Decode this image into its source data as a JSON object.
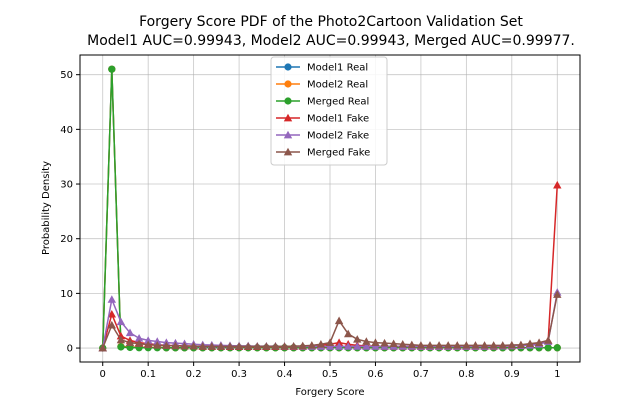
{
  "chart_data": {
    "type": "line",
    "title_line1": "Forgery Score PDF of the Photo2Cartoon Validation Set",
    "title_line2": "Model1 AUC=0.99943, Model2 AUC=0.99943, Merged AUC=0.99977.",
    "xlabel": "Forgery Score",
    "ylabel": "Probability Density",
    "xlim": [
      -0.05,
      1.05
    ],
    "ylim": [
      -2.55,
      53.6
    ],
    "xticks": [
      "0",
      "0.1",
      "0.2",
      "0.3",
      "0.4",
      "0.5",
      "0.6",
      "0.7",
      "0.8",
      "0.9",
      "1"
    ],
    "yticks": [
      "0",
      "10",
      "20",
      "30",
      "40",
      "50"
    ],
    "grid": true,
    "legend_position": "top-center",
    "x": [
      0,
      0.02,
      0.04,
      0.06,
      0.08,
      0.1,
      0.12,
      0.14,
      0.16,
      0.18,
      0.2,
      0.22,
      0.24,
      0.26,
      0.28,
      0.3,
      0.32,
      0.34,
      0.36,
      0.38,
      0.4,
      0.42,
      0.44,
      0.46,
      0.48,
      0.5,
      0.52,
      0.54,
      0.56,
      0.58,
      0.6,
      0.62,
      0.64,
      0.66,
      0.68,
      0.7,
      0.72,
      0.74,
      0.76,
      0.78,
      0.8,
      0.82,
      0.84,
      0.86,
      0.88,
      0.9,
      0.92,
      0.94,
      0.96,
      0.98,
      1.0
    ],
    "series": [
      {
        "name": "Model1 Real",
        "color": "#1f77b4",
        "marker": "circle",
        "values": [
          0,
          51,
          0.3,
          0.2,
          0.15,
          0.1,
          0.1,
          0.05,
          0.05,
          0.05,
          0.05,
          0.05,
          0.05,
          0.05,
          0.05,
          0.05,
          0.05,
          0.05,
          0.05,
          0.05,
          0.05,
          0.05,
          0.05,
          0.05,
          0.05,
          0.05,
          0.05,
          0.05,
          0.05,
          0.05,
          0.05,
          0.05,
          0.05,
          0.05,
          0.05,
          0.05,
          0.05,
          0.05,
          0.05,
          0.05,
          0.05,
          0.05,
          0.05,
          0.05,
          0.05,
          0.05,
          0.05,
          0.05,
          0.05,
          0.05,
          0.05
        ]
      },
      {
        "name": "Model2 Real",
        "color": "#ff7f0e",
        "marker": "circle",
        "values": [
          0,
          51,
          0.3,
          0.2,
          0.15,
          0.1,
          0.1,
          0.05,
          0.05,
          0.05,
          0.05,
          0.05,
          0.05,
          0.05,
          0.05,
          0.05,
          0.05,
          0.05,
          0.05,
          0.05,
          0.05,
          0.05,
          0.05,
          0.05,
          0.05,
          0.05,
          0.05,
          0.05,
          0.05,
          0.05,
          0.05,
          0.05,
          0.05,
          0.05,
          0.05,
          0.05,
          0.05,
          0.05,
          0.05,
          0.05,
          0.05,
          0.05,
          0.05,
          0.05,
          0.05,
          0.05,
          0.05,
          0.05,
          0.05,
          0.05,
          0.05
        ]
      },
      {
        "name": "Merged Real",
        "color": "#2ca02c",
        "marker": "circle",
        "values": [
          0,
          51,
          0.2,
          0.1,
          0.05,
          0.05,
          0.05,
          0.05,
          0.05,
          0.05,
          0.05,
          0.05,
          0.05,
          0.05,
          0.05,
          0.05,
          0.05,
          0.05,
          0.05,
          0.05,
          0.05,
          0.05,
          0.05,
          0.05,
          0.05,
          0.05,
          0.05,
          0.05,
          0.05,
          0.05,
          0.05,
          0.05,
          0.05,
          0.05,
          0.05,
          0.05,
          0.05,
          0.05,
          0.05,
          0.05,
          0.05,
          0.05,
          0.05,
          0.05,
          0.05,
          0.05,
          0.05,
          0.05,
          0.05,
          0.05,
          0.05
        ]
      },
      {
        "name": "Model1 Fake",
        "color": "#d62728",
        "marker": "triangle",
        "values": [
          0,
          6.2,
          2.2,
          1.4,
          1.0,
          0.8,
          0.6,
          0.5,
          0.45,
          0.4,
          0.35,
          0.3,
          0.3,
          0.3,
          0.25,
          0.25,
          0.25,
          0.25,
          0.25,
          0.25,
          0.25,
          0.25,
          0.3,
          0.4,
          0.5,
          0.7,
          1.0,
          0.7,
          0.5,
          0.4,
          0.35,
          0.3,
          0.3,
          0.3,
          0.3,
          0.3,
          0.3,
          0.3,
          0.3,
          0.3,
          0.3,
          0.3,
          0.3,
          0.3,
          0.35,
          0.4,
          0.5,
          0.6,
          0.8,
          1.4,
          29.8
        ]
      },
      {
        "name": "Model2 Fake",
        "color": "#9467bd",
        "marker": "triangle",
        "values": [
          0,
          8.9,
          4.8,
          2.8,
          1.8,
          1.4,
          1.2,
          1.0,
          0.9,
          0.8,
          0.7,
          0.6,
          0.55,
          0.5,
          0.45,
          0.4,
          0.4,
          0.35,
          0.35,
          0.35,
          0.3,
          0.3,
          0.3,
          0.3,
          0.3,
          0.3,
          0.3,
          0.3,
          0.3,
          0.3,
          0.3,
          0.3,
          0.3,
          0.3,
          0.3,
          0.3,
          0.3,
          0.3,
          0.3,
          0.3,
          0.3,
          0.3,
          0.3,
          0.35,
          0.35,
          0.4,
          0.45,
          0.5,
          0.7,
          1.2,
          10.2
        ]
      },
      {
        "name": "Merged Fake",
        "color": "#8c564b",
        "marker": "triangle",
        "values": [
          0,
          4.2,
          1.5,
          1.0,
          0.8,
          0.6,
          0.5,
          0.45,
          0.4,
          0.35,
          0.35,
          0.3,
          0.3,
          0.3,
          0.3,
          0.3,
          0.3,
          0.3,
          0.3,
          0.3,
          0.3,
          0.35,
          0.4,
          0.5,
          0.7,
          1.0,
          5.0,
          2.6,
          1.6,
          1.2,
          1.0,
          0.9,
          0.8,
          0.7,
          0.6,
          0.5,
          0.5,
          0.5,
          0.5,
          0.5,
          0.5,
          0.5,
          0.5,
          0.5,
          0.5,
          0.55,
          0.6,
          0.8,
          1.0,
          1.4,
          9.8
        ]
      }
    ]
  }
}
